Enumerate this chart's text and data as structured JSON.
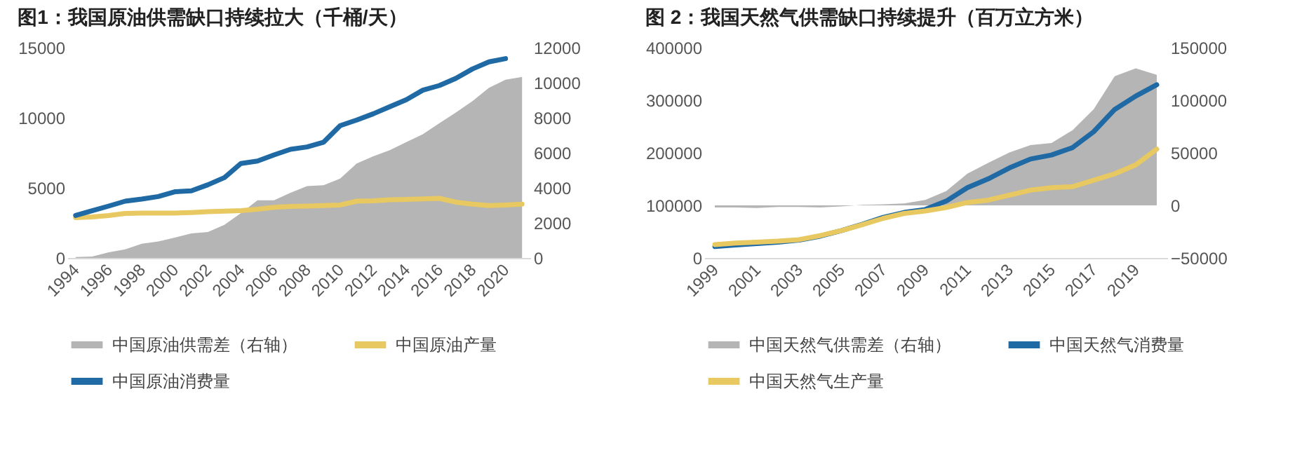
{
  "chart_data": [
    {
      "type": "line",
      "title": "图1：我国原油供需缺口持续拉大（千桶/天）",
      "legend": "bottom",
      "categories": [
        "1994",
        null,
        "1996",
        null,
        "1998",
        null,
        "2000",
        null,
        "2002",
        null,
        "2004",
        null,
        "2006",
        null,
        "2008",
        null,
        "2010",
        null,
        "2012",
        null,
        "2014",
        null,
        "2016",
        null,
        "2018",
        null,
        "2020",
        null
      ],
      "ylim": [
        0,
        15000
      ],
      "yticks": [
        0,
        5000,
        10000,
        15000
      ],
      "y2lim": [
        0,
        12000
      ],
      "y2ticks": [
        0,
        2000,
        4000,
        6000,
        8000,
        10000,
        12000
      ],
      "series": [
        {
          "name": "中国原油供需差（右轴）",
          "type": "area",
          "axis": "y2",
          "color": "#b5b5b5",
          "values": [
            50,
            80,
            320,
            490,
            810,
            940,
            1160,
            1400,
            1480,
            1890,
            2560,
            3290,
            3290,
            3720,
            4100,
            4150,
            4530,
            5390,
            5800,
            6150,
            6610,
            7060,
            7690,
            8300,
            8950,
            9710,
            10170,
            10330
          ]
        },
        {
          "name": "中国原油产量",
          "color": "#e8c860",
          "values": [
            2870,
            2930,
            3030,
            3170,
            3200,
            3200,
            3200,
            3240,
            3300,
            3340,
            3370,
            3470,
            3610,
            3670,
            3700,
            3740,
            3780,
            4050,
            4080,
            4150,
            4180,
            4210,
            4250,
            3980,
            3840,
            3740,
            3780,
            3840
          ]
        },
        {
          "name": "中国原油消费量",
          "color": "#1f6aa5",
          "values": [
            3030,
            3370,
            3700,
            4050,
            4200,
            4380,
            4720,
            4790,
            5220,
            5730,
            6740,
            6910,
            7350,
            7750,
            7920,
            8260,
            9440,
            9840,
            10280,
            10790,
            11290,
            11970,
            12300,
            12810,
            13480,
            13990,
            14220,
            null
          ]
        }
      ]
    },
    {
      "type": "line",
      "title": "图 2：我国天然气供需缺口持续提升（百万立方米）",
      "legend": "bottom",
      "categories": [
        "1999",
        null,
        "2001",
        null,
        "2003",
        null,
        "2005",
        null,
        "2007",
        null,
        "2009",
        null,
        "2011",
        null,
        "2013",
        null,
        "2015",
        null,
        "2017",
        null,
        "2019",
        null
      ],
      "ylim": [
        0,
        400000
      ],
      "yticks": [
        0,
        100000,
        200000,
        300000,
        400000
      ],
      "y2lim": [
        -50000,
        150000
      ],
      "y2ticks": [
        -50000,
        0,
        50000,
        100000,
        150000
      ],
      "series": [
        {
          "name": "中国天然气供需差（右轴）",
          "type": "area",
          "axis": "y2",
          "color": "#b5b5b5",
          "values": [
            -2000,
            -2000,
            -2500,
            -1500,
            -1500,
            -2000,
            -1000,
            500,
            1000,
            1900,
            5200,
            13600,
            30100,
            40500,
            50400,
            57400,
            59300,
            71500,
            91300,
            122800,
            130400,
            124200
          ]
        },
        {
          "name": "中国天然气消费量",
          "color": "#1f6aa5",
          "values": [
            21600,
            24500,
            27300,
            30100,
            33900,
            41400,
            51800,
            64000,
            77200,
            86600,
            92200,
            108200,
            133600,
            150600,
            171300,
            188200,
            195800,
            209900,
            240000,
            282400,
            307800,
            329400
          ]
        },
        {
          "name": "中国天然气生产量",
          "color": "#e8c860",
          "values": [
            25400,
            28200,
            30100,
            32000,
            34800,
            42400,
            51800,
            63100,
            75300,
            84700,
            89400,
            96000,
            105400,
            110100,
            119500,
            128900,
            133600,
            135500,
            147800,
            160000,
            176900,
            207000
          ]
        }
      ]
    }
  ]
}
